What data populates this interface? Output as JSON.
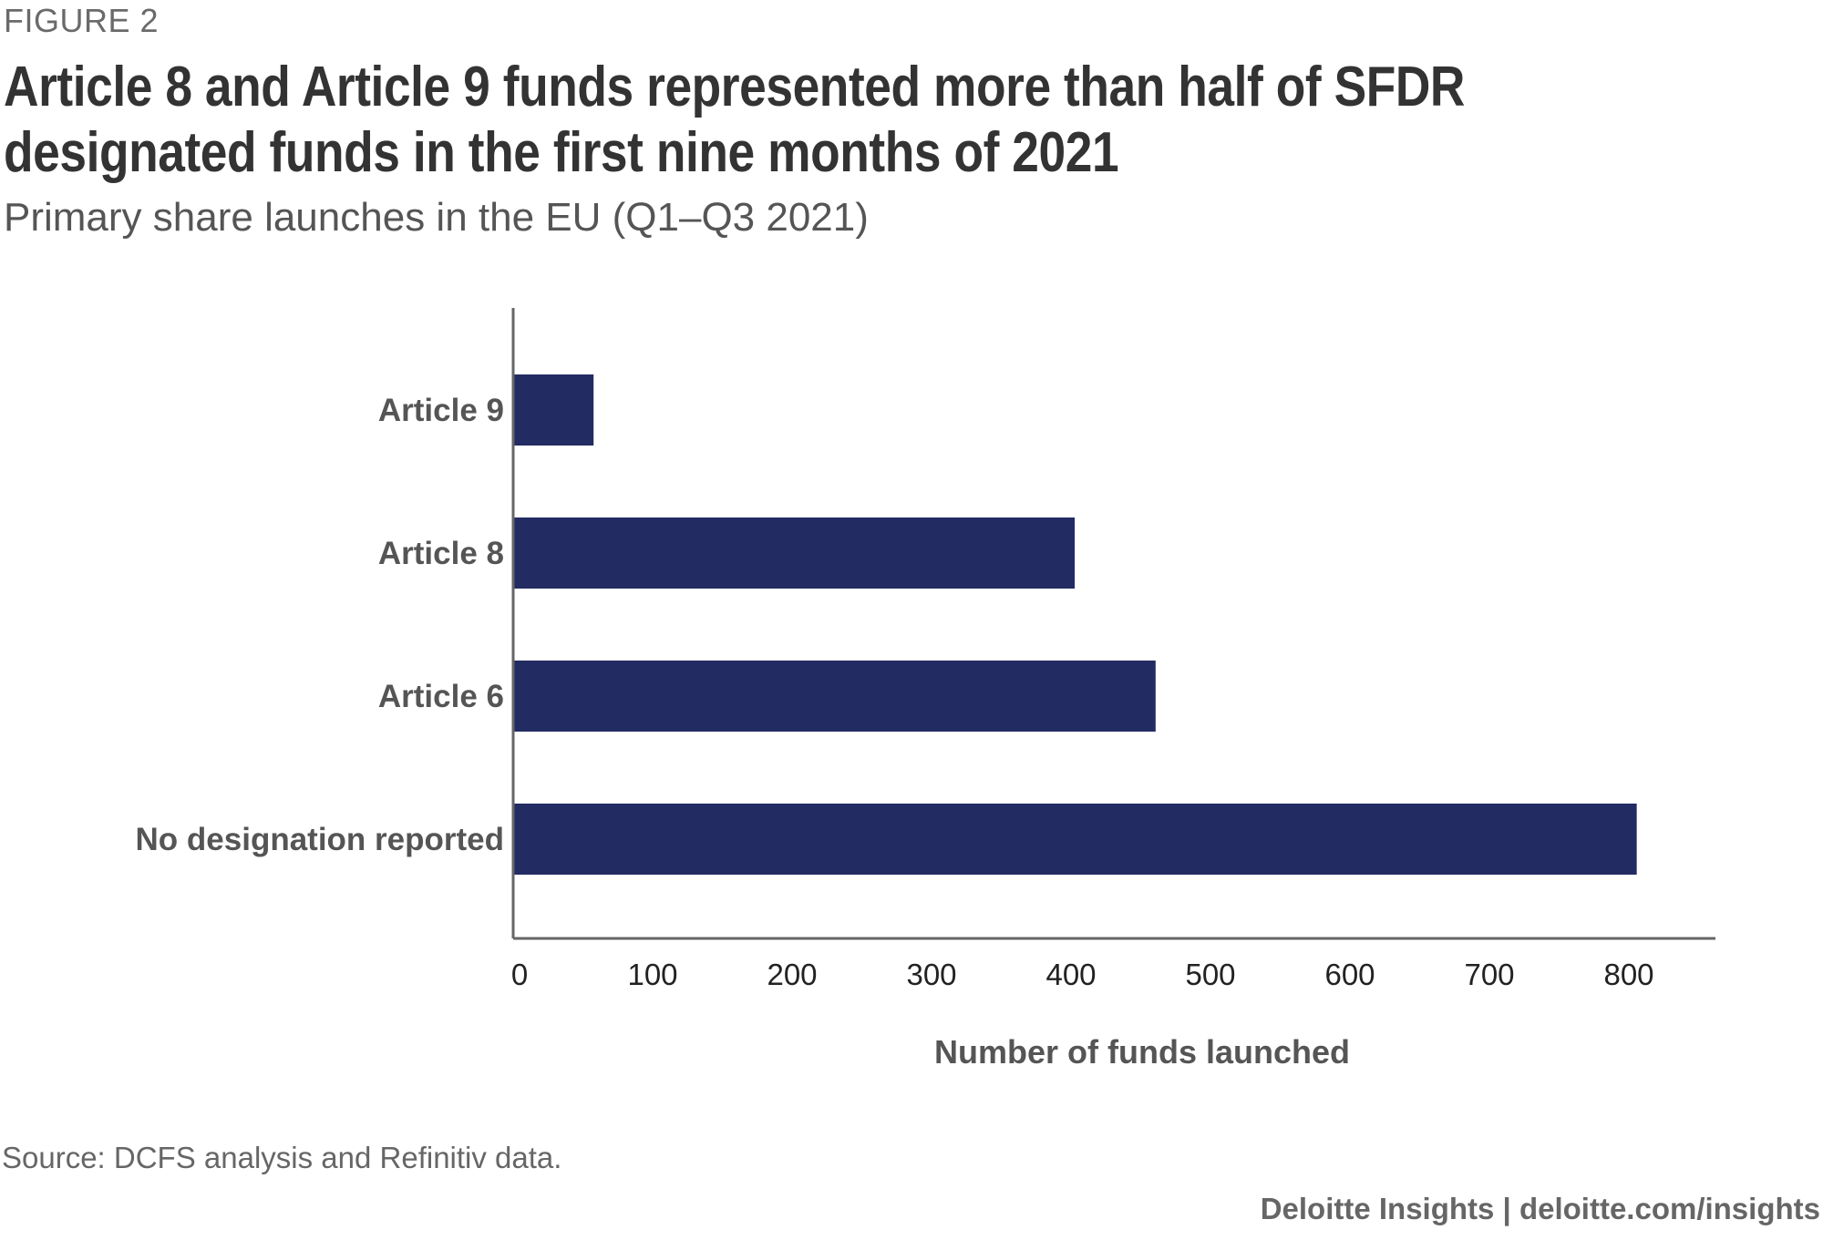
{
  "header": {
    "figure_label": "FIGURE 2",
    "title": "Article 8 and Article 9 funds represented more than half of SFDR designated funds in the first nine months of 2021",
    "subtitle": "Primary share launches in the EU (Q1–Q3 2021)"
  },
  "footer": {
    "source": "Source: DCFS analysis and Refinitiv data.",
    "credit": "Deloitte Insights | deloitte.com/insights"
  },
  "colors": {
    "bar": "#232B63",
    "axis": "#666666",
    "title": "#333333"
  },
  "chart_data": {
    "type": "bar",
    "orientation": "horizontal",
    "title": "Article 8 and Article 9 funds represented more than half of SFDR designated funds in the first nine months of 2021",
    "subtitle": "Primary share launches in the EU (Q1–Q3 2021)",
    "categories": [
      "Article 9",
      "Article 8",
      "Article 6",
      "No designation reported"
    ],
    "values": [
      57,
      402,
      460,
      805
    ],
    "xlabel": "Number of funds launched",
    "ylabel": "",
    "xlim": [
      0,
      860
    ],
    "xticks": [
      0,
      100,
      200,
      300,
      400,
      500,
      600,
      700,
      800
    ],
    "grid": false,
    "legend": "none"
  }
}
